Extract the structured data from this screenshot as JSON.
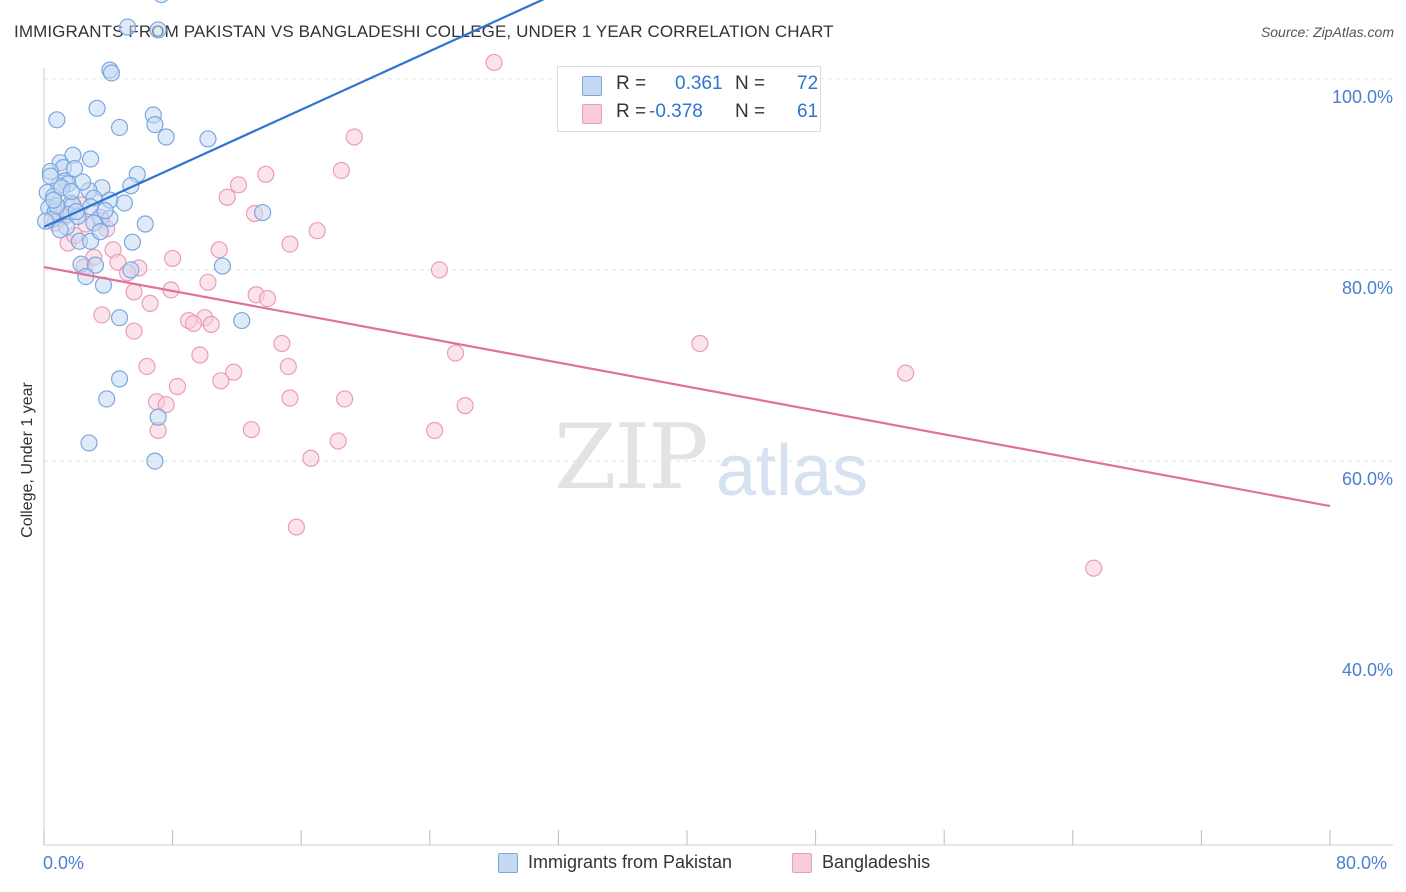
{
  "title": "IMMIGRANTS FROM PAKISTAN VS BANGLADESHI COLLEGE, UNDER 1 YEAR CORRELATION CHART",
  "source": "Source: ZipAtlas.com",
  "watermark": {
    "zip": "ZIP",
    "atlas": "atlas"
  },
  "colors": {
    "blue": "#7ba7e0",
    "blue_fill": "#c5d9f3",
    "blue_line": "#2f74d0",
    "pink": "#ec9cb8",
    "pink_fill": "#f7ccdb",
    "pink_line": "#e2719a",
    "axis_text": "#4a7fd0"
  },
  "legend": {
    "rows": [
      {
        "r_label": "R =",
        "r_value": "0.361",
        "n_label": "N =",
        "n_value": "72"
      },
      {
        "r_label": "R =",
        "r_value": "-0.378",
        "n_label": "N =",
        "n_value": "61"
      }
    ]
  },
  "bottom_legend": [
    "Immigrants from Pakistan",
    "Bangladeshis"
  ],
  "chart_data": {
    "type": "scatter",
    "title": "IMMIGRANTS FROM PAKISTAN VS BANGLADESHI COLLEGE, UNDER 1 YEAR CORRELATION CHART",
    "xlabel": "",
    "ylabel": "College, Under 1 year",
    "xlim": [
      0,
      80
    ],
    "ylim": [
      20,
      102
    ],
    "x_tick_labels": [
      "0.0%",
      "80.0%"
    ],
    "y_ticks": [
      {
        "value": 100,
        "label": "100.0%"
      },
      {
        "value": 80,
        "label": "80.0%"
      },
      {
        "value": 60,
        "label": "60.0%"
      },
      {
        "value": 40,
        "label": "40.0%"
      }
    ],
    "series": [
      {
        "name": "Immigrants from Pakistan",
        "color": "#7ba7e0",
        "R": 0.361,
        "N": 72,
        "trend": {
          "x": [
            0,
            40.6
          ],
          "y": [
            64.5,
            95.6
          ]
        },
        "points": [
          [
            16.4,
            96.6
          ],
          [
            7.3,
            88.8
          ],
          [
            5.2,
            85.4
          ],
          [
            7.1,
            85.1
          ],
          [
            4.1,
            80.9
          ],
          [
            4.2,
            80.6
          ],
          [
            3.3,
            76.9
          ],
          [
            0.8,
            75.7
          ],
          [
            6.8,
            76.2
          ],
          [
            4.7,
            74.9
          ],
          [
            6.9,
            75.2
          ],
          [
            7.6,
            73.9
          ],
          [
            10.2,
            73.7
          ],
          [
            1.8,
            72.0
          ],
          [
            2.9,
            71.6
          ],
          [
            1.0,
            71.2
          ],
          [
            1.2,
            70.7
          ],
          [
            1.9,
            70.6
          ],
          [
            0.4,
            70.3
          ],
          [
            5.8,
            70.0
          ],
          [
            1.3,
            69.3
          ],
          [
            1.5,
            69.0
          ],
          [
            0.9,
            68.8
          ],
          [
            3.6,
            68.6
          ],
          [
            2.8,
            68.3
          ],
          [
            5.4,
            68.8
          ],
          [
            0.2,
            68.1
          ],
          [
            0.6,
            67.7
          ],
          [
            3.1,
            67.5
          ],
          [
            4.1,
            67.3
          ],
          [
            1.7,
            67.0
          ],
          [
            0.3,
            66.5
          ],
          [
            1.8,
            66.8
          ],
          [
            2.9,
            66.6
          ],
          [
            5.0,
            67.0
          ],
          [
            0.7,
            66.1
          ],
          [
            1.5,
            65.8
          ],
          [
            2.1,
            65.6
          ],
          [
            3.5,
            65.5
          ],
          [
            0.5,
            65.3
          ],
          [
            4.1,
            65.4
          ],
          [
            3.1,
            64.9
          ],
          [
            6.3,
            64.8
          ],
          [
            2.2,
            63.0
          ],
          [
            2.9,
            63.0
          ],
          [
            3.5,
            64.0
          ],
          [
            5.5,
            62.9
          ],
          [
            13.6,
            66.0
          ],
          [
            2.3,
            60.6
          ],
          [
            3.2,
            60.5
          ],
          [
            5.4,
            60.0
          ],
          [
            11.1,
            60.4
          ],
          [
            2.6,
            59.3
          ],
          [
            3.7,
            58.4
          ],
          [
            0.1,
            65.1
          ],
          [
            4.7,
            55.0
          ],
          [
            12.3,
            54.7
          ],
          [
            4.7,
            48.6
          ],
          [
            3.9,
            46.5
          ],
          [
            7.1,
            44.6
          ],
          [
            2.8,
            41.9
          ],
          [
            6.9,
            40.0
          ],
          [
            1.1,
            68.6
          ],
          [
            2.4,
            69.2
          ],
          [
            0.8,
            66.7
          ],
          [
            1.4,
            64.5
          ],
          [
            2.0,
            66.1
          ],
          [
            0.4,
            69.8
          ],
          [
            3.8,
            66.2
          ],
          [
            1.0,
            64.2
          ],
          [
            0.6,
            67.3
          ],
          [
            1.7,
            68.2
          ]
        ]
      },
      {
        "name": "Bangladeshis",
        "color": "#ec9cb8",
        "R": -0.378,
        "N": 61,
        "trend": {
          "x": [
            0,
            80
          ],
          "y": [
            60.3,
            35.3
          ]
        },
        "points": [
          [
            28.0,
            81.7
          ],
          [
            19.3,
            73.9
          ],
          [
            18.5,
            70.4
          ],
          [
            13.8,
            70.0
          ],
          [
            12.1,
            68.9
          ],
          [
            11.4,
            67.6
          ],
          [
            2.6,
            64.8
          ],
          [
            13.1,
            65.9
          ],
          [
            3.6,
            65.2
          ],
          [
            17.0,
            64.1
          ],
          [
            1.5,
            62.8
          ],
          [
            15.3,
            62.7
          ],
          [
            4.3,
            62.1
          ],
          [
            10.9,
            62.1
          ],
          [
            3.1,
            61.3
          ],
          [
            8.0,
            61.2
          ],
          [
            4.6,
            60.8
          ],
          [
            2.5,
            60.3
          ],
          [
            5.9,
            60.2
          ],
          [
            24.6,
            60.0
          ],
          [
            5.2,
            59.7
          ],
          [
            10.2,
            58.7
          ],
          [
            7.9,
            57.9
          ],
          [
            5.6,
            57.7
          ],
          [
            13.2,
            57.4
          ],
          [
            13.9,
            57.0
          ],
          [
            6.6,
            56.5
          ],
          [
            3.6,
            55.3
          ],
          [
            10.0,
            55.0
          ],
          [
            9.0,
            54.7
          ],
          [
            9.3,
            54.4
          ],
          [
            10.4,
            54.3
          ],
          [
            5.6,
            53.6
          ],
          [
            14.8,
            52.3
          ],
          [
            40.8,
            52.3
          ],
          [
            25.6,
            51.3
          ],
          [
            9.7,
            51.1
          ],
          [
            6.4,
            49.9
          ],
          [
            15.2,
            49.9
          ],
          [
            11.8,
            49.3
          ],
          [
            53.6,
            49.2
          ],
          [
            11.0,
            48.4
          ],
          [
            8.3,
            47.8
          ],
          [
            15.3,
            46.6
          ],
          [
            18.7,
            46.5
          ],
          [
            7.0,
            46.2
          ],
          [
            7.6,
            45.9
          ],
          [
            26.2,
            45.8
          ],
          [
            7.1,
            43.2
          ],
          [
            12.9,
            43.3
          ],
          [
            24.3,
            43.2
          ],
          [
            18.3,
            42.1
          ],
          [
            16.6,
            40.3
          ],
          [
            15.7,
            33.1
          ],
          [
            65.3,
            28.8
          ],
          [
            0.9,
            66.3
          ],
          [
            1.3,
            65.6
          ],
          [
            0.7,
            64.9
          ],
          [
            2.3,
            66.8
          ],
          [
            3.9,
            64.3
          ],
          [
            1.9,
            63.6
          ]
        ]
      }
    ]
  }
}
